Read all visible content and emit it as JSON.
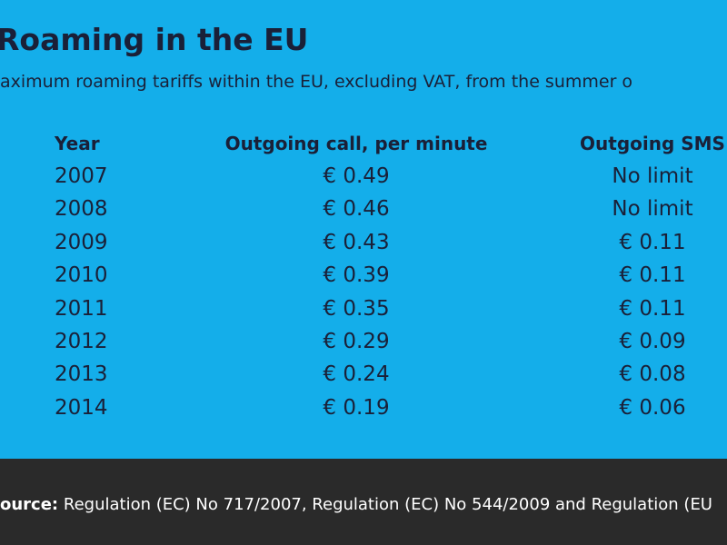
{
  "header": {
    "title": "Roaming in the EU",
    "subtitle": "aximum roaming tariffs within the EU, excluding VAT, from the summer o"
  },
  "table": {
    "columns": [
      "Year",
      "Outgoing call, per minute",
      "Outgoing SMS"
    ],
    "rows": [
      [
        "2007",
        "€ 0.49",
        "No limit"
      ],
      [
        "2008",
        "€ 0.46",
        "No limit"
      ],
      [
        "2009",
        "€ 0.43",
        "€ 0.11"
      ],
      [
        "2010",
        "€ 0.39",
        "€ 0.11"
      ],
      [
        "2011",
        "€ 0.35",
        "€ 0.11"
      ],
      [
        "2012",
        "€ 0.29",
        "€ 0.09"
      ],
      [
        "2013",
        "€ 0.24",
        "€ 0.08"
      ],
      [
        "2014",
        "€ 0.19",
        "€ 0.06"
      ]
    ]
  },
  "footer": {
    "label": "ource:",
    "text": "Regulation (EC) No 717/2007, Regulation (EC) No 544/2009 and Regulation (EU"
  }
}
